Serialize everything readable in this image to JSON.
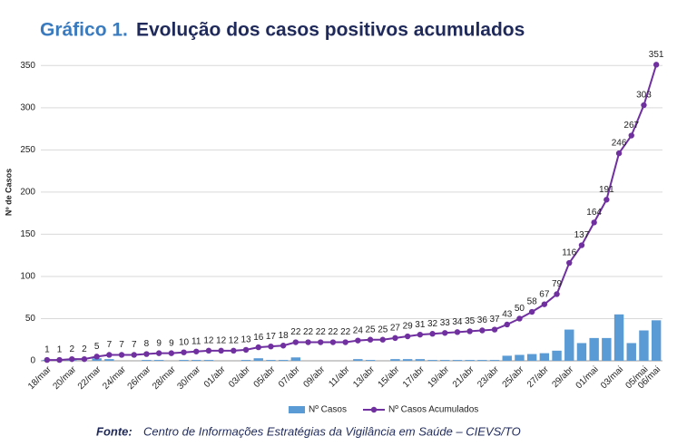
{
  "chart_data": {
    "type": "combo",
    "title_prefix": "Gráfico 1.",
    "title": "Evolução dos casos positivos acumulados",
    "y_label": "Nº de Casos",
    "source_label": "Fonte:",
    "source": "Centro de Informações Estratégias da Vigilância em Saúde – CIEVS/TO",
    "categories": [
      "18/mar",
      null,
      "20/mar",
      null,
      "22/mar",
      null,
      "24/mar",
      null,
      "26/mar",
      null,
      "28/mar",
      null,
      "30/mar",
      null,
      "01/abr",
      null,
      "03/abr",
      null,
      "05/abr",
      null,
      "07/abr",
      null,
      "09/abr",
      null,
      "11/abr",
      null,
      "13/abr",
      null,
      "15/abr",
      null,
      "17/abr",
      null,
      "19/abr",
      null,
      "21/abr",
      null,
      "23/abr",
      null,
      "25/abr",
      null,
      "27/abr",
      null,
      "29/abr",
      null,
      "01/mai",
      null,
      "03/mai",
      null,
      "05/mai",
      "06/mai"
    ],
    "series": [
      {
        "name": "Nº Casos",
        "type": "bar",
        "color": "#5b9bd5",
        "values": [
          1,
          0,
          1,
          0,
          3,
          2,
          0,
          0,
          1,
          1,
          0,
          1,
          1,
          1,
          0,
          0,
          1,
          3,
          1,
          1,
          4,
          0,
          0,
          0,
          0,
          2,
          1,
          0,
          2,
          2,
          2,
          1,
          1,
          1,
          1,
          1,
          1,
          6,
          7,
          8,
          9,
          12,
          37,
          21,
          27,
          27,
          55,
          21,
          36,
          48
        ]
      },
      {
        "name": "Nº Casos Acumulados",
        "type": "line",
        "color": "#7030a0",
        "values": [
          1,
          1,
          2,
          2,
          5,
          7,
          7,
          7,
          8,
          9,
          9,
          10,
          11,
          12,
          12,
          12,
          13,
          16,
          17,
          18,
          22,
          22,
          22,
          22,
          22,
          24,
          25,
          25,
          27,
          29,
          31,
          32,
          33,
          34,
          35,
          36,
          37,
          43,
          50,
          58,
          67,
          79,
          116,
          137,
          164,
          191,
          246,
          267,
          303,
          351
        ]
      }
    ],
    "ylim": [
      0,
      360
    ],
    "yticks": [
      0,
      50,
      100,
      150,
      200,
      250,
      300,
      350
    ],
    "grid": true
  }
}
